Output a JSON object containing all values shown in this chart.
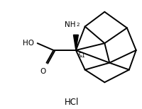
{
  "background_color": "#ffffff",
  "line_color": "#000000",
  "line_width": 1.4,
  "text_color": "#000000",
  "font_size": 7.5,
  "small_font_size": 5.5,
  "hcl_font_size": 8.5,
  "figsize": [
    2.01,
    1.54
  ],
  "dpi": 100,
  "hcl_text": "HCl",
  "ho_text": "HO",
  "o_text": "O",
  "stereo_text": "&1",
  "nh2_text": "NH",
  "nh2_sub": "2"
}
